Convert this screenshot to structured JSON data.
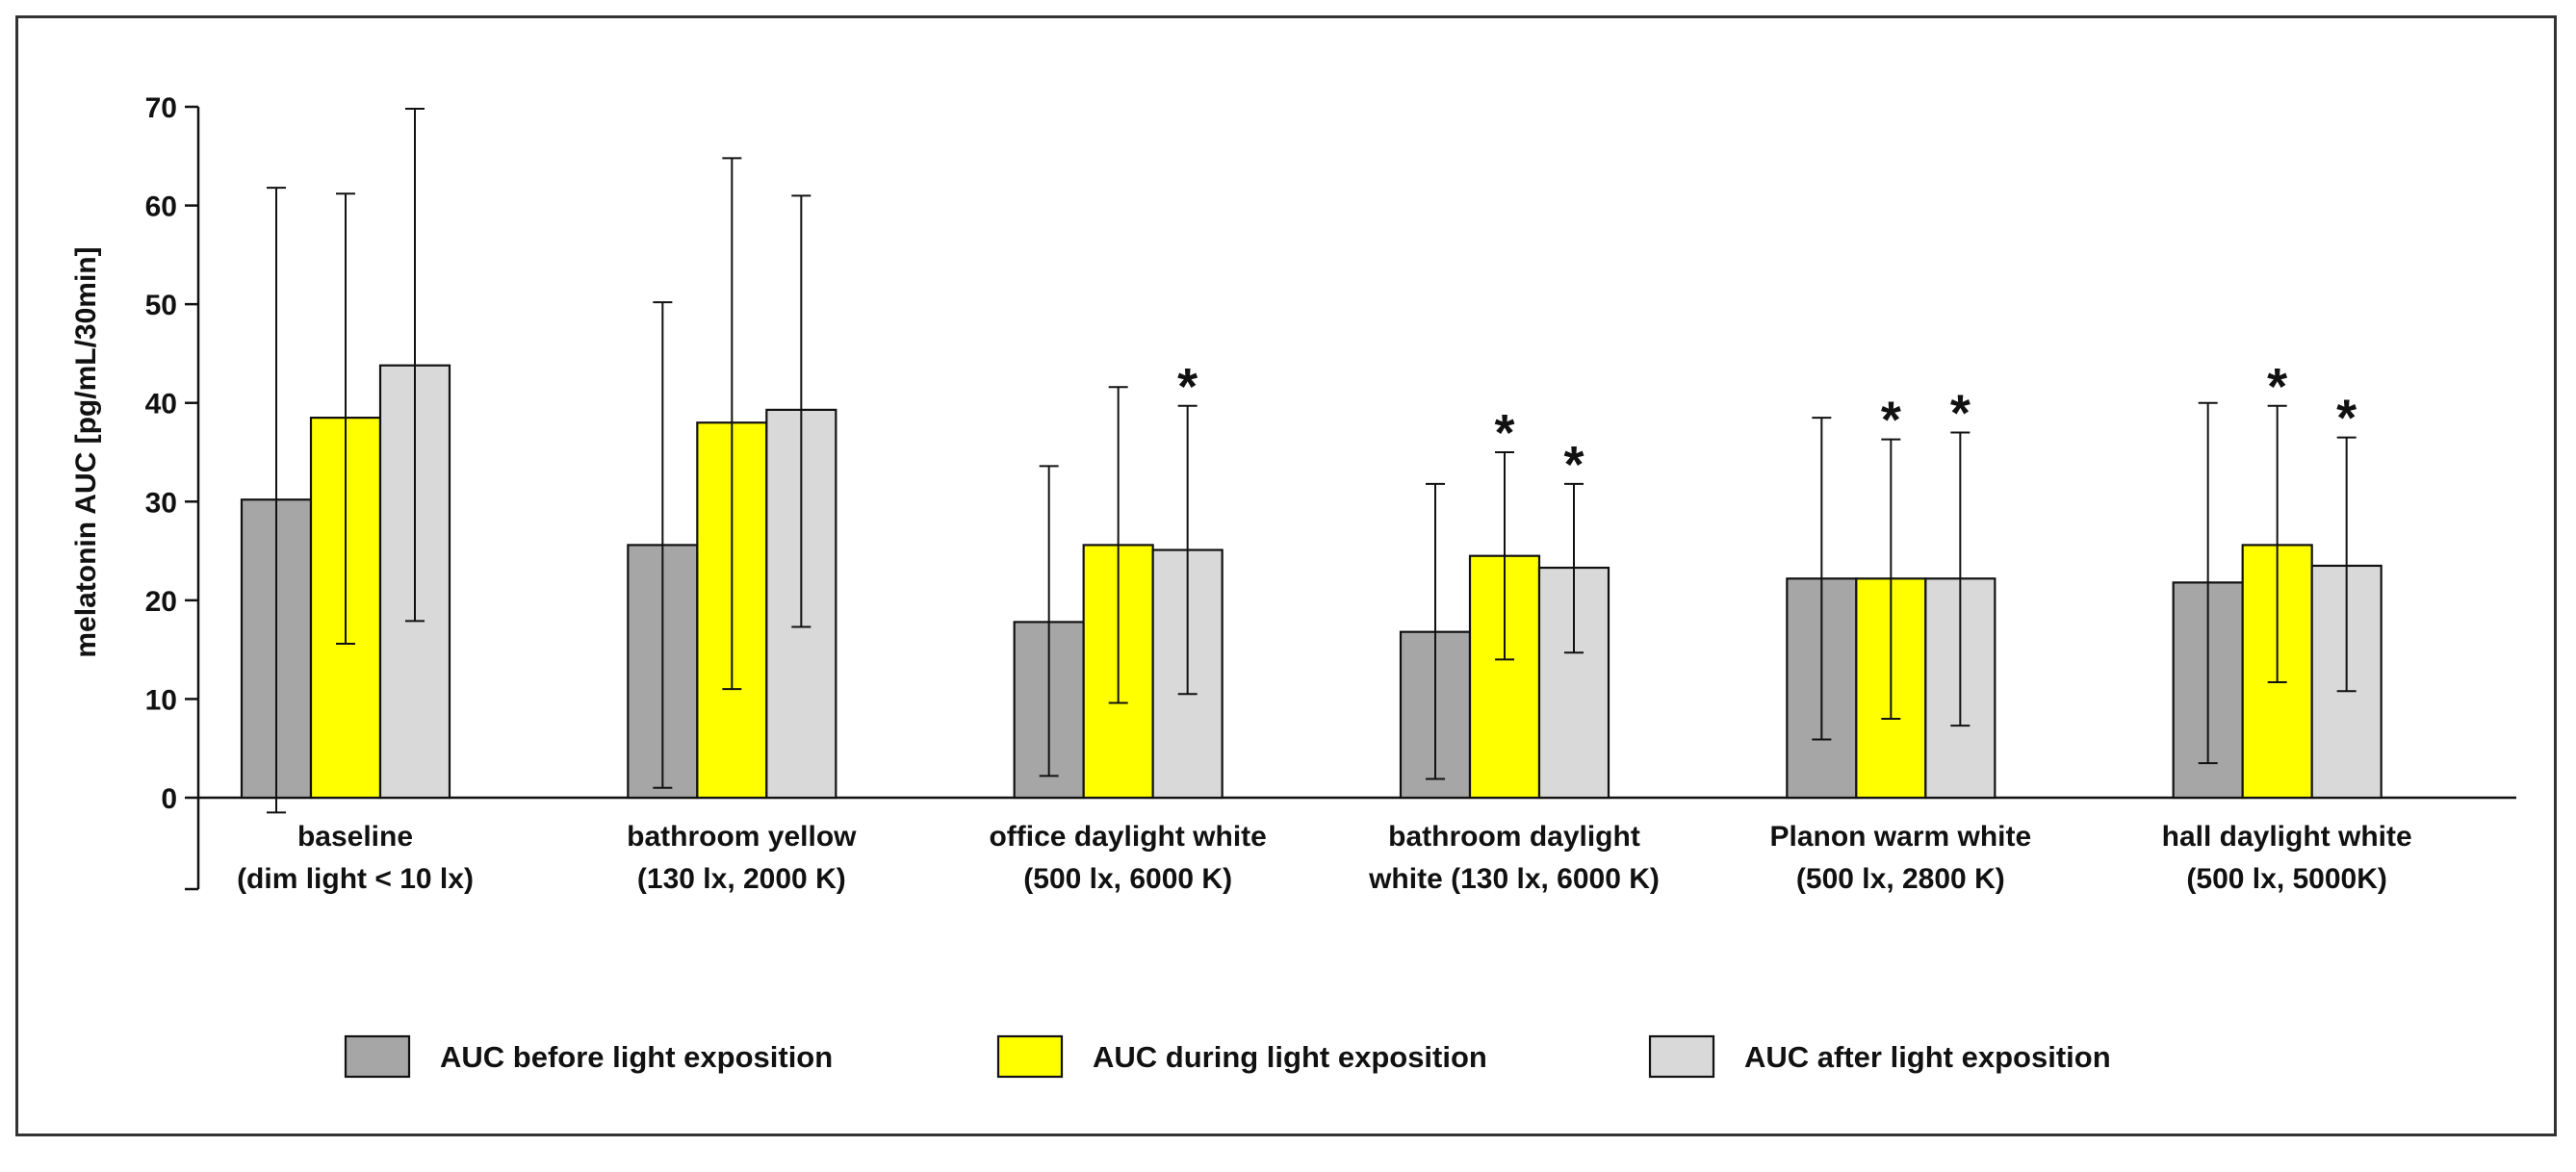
{
  "chart_data": {
    "type": "bar",
    "ylabel": "melatonin AUC [pg/mL/30min]",
    "ylim": [
      0,
      70
    ],
    "yticks": [
      0,
      10,
      20,
      30,
      40,
      50,
      60,
      70
    ],
    "grid": false,
    "legend_position": "bottom",
    "categories": [
      [
        "baseline",
        "(dim light < 10 lx)"
      ],
      [
        "bathroom yellow",
        "(130 lx, 2000 K)"
      ],
      [
        "office daylight white",
        "(500 lx, 6000 K)"
      ],
      [
        "bathroom daylight",
        "white (130 lx, 6000 K)"
      ],
      [
        "Planon warm white",
        "(500 lx, 2800 K)"
      ],
      [
        "hall daylight white",
        "(500 lx, 5000K)"
      ]
    ],
    "series": [
      {
        "name": "AUC before light exposition",
        "color": "#a6a6a6",
        "values": [
          30.2,
          25.6,
          17.8,
          16.8,
          22.2,
          21.8
        ],
        "error_upper": [
          61.8,
          50.2,
          33.6,
          31.8,
          38.5,
          40.0
        ],
        "error_lower": [
          -1.5,
          1.0,
          2.2,
          1.9,
          5.9,
          3.5
        ],
        "significant": [
          false,
          false,
          false,
          false,
          false,
          false
        ]
      },
      {
        "name": "AUC during light exposition",
        "color": "#ffff00",
        "values": [
          38.5,
          38.0,
          25.6,
          24.5,
          22.2,
          25.6
        ],
        "error_upper": [
          61.2,
          64.8,
          41.6,
          35.0,
          36.3,
          39.7
        ],
        "error_lower": [
          15.6,
          11.0,
          9.6,
          14.0,
          8.0,
          11.7
        ],
        "significant": [
          false,
          false,
          false,
          true,
          true,
          true
        ]
      },
      {
        "name": "AUC after light exposition",
        "color": "#d9d9d9",
        "values": [
          43.8,
          39.3,
          25.1,
          23.3,
          22.2,
          23.5
        ],
        "error_upper": [
          69.8,
          61.0,
          39.7,
          31.8,
          37.0,
          36.5
        ],
        "error_lower": [
          17.9,
          17.3,
          10.5,
          14.7,
          7.3,
          10.8
        ],
        "significant": [
          false,
          false,
          true,
          true,
          true,
          true
        ]
      }
    ],
    "significance_marker": "*"
  }
}
